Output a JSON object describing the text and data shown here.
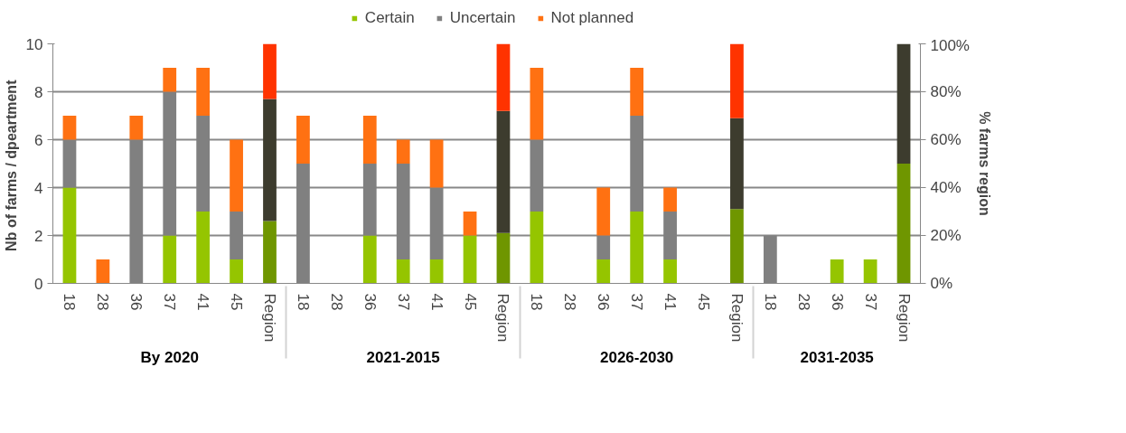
{
  "chart_data": {
    "type": "bar",
    "stacked": true,
    "categories": [
      "18",
      "28",
      "36",
      "37",
      "41",
      "45",
      "Region",
      "18",
      "28",
      "36",
      "37",
      "41",
      "45",
      "Region",
      "18",
      "28",
      "36",
      "37",
      "41",
      "45",
      "Region",
      "18",
      "28",
      "36",
      "37",
      "Region"
    ],
    "series": [
      {
        "name": "Certain",
        "color": "#95c500",
        "values": [
          4,
          0,
          0,
          2,
          3,
          1,
          null,
          0,
          0,
          2,
          1,
          1,
          2,
          null,
          3,
          0,
          1,
          3,
          1,
          0,
          null,
          0,
          0,
          1,
          1,
          null
        ]
      },
      {
        "name": "Uncertain",
        "color": "#808080",
        "values": [
          2,
          0,
          6,
          6,
          4,
          2,
          null,
          5,
          0,
          3,
          4,
          3,
          0,
          null,
          3,
          0,
          1,
          4,
          2,
          0,
          null,
          2,
          0,
          0,
          0,
          null
        ]
      },
      {
        "name": "Not planned",
        "color": "#ff7112",
        "values": [
          1,
          1,
          1,
          1,
          2,
          3,
          null,
          2,
          0,
          2,
          1,
          2,
          1,
          null,
          3,
          0,
          2,
          2,
          1,
          0,
          null,
          0,
          0,
          0,
          0,
          null
        ]
      },
      {
        "color": "#6f9600",
        "axis": "y2",
        "values": [
          null,
          null,
          null,
          null,
          null,
          null,
          26,
          null,
          null,
          null,
          null,
          null,
          null,
          21,
          null,
          null,
          null,
          null,
          null,
          null,
          31,
          null,
          null,
          null,
          null,
          50
        ]
      },
      {
        "color": "#3d3c2e",
        "axis": "y2",
        "values": [
          null,
          null,
          null,
          null,
          null,
          null,
          51,
          null,
          null,
          null,
          null,
          null,
          null,
          51,
          null,
          null,
          null,
          null,
          null,
          null,
          38,
          null,
          null,
          null,
          null,
          50
        ]
      },
      {
        "color": "#ff3300",
        "axis": "y2",
        "values": [
          null,
          null,
          null,
          null,
          null,
          null,
          23,
          null,
          null,
          null,
          null,
          null,
          null,
          28,
          null,
          null,
          null,
          null,
          null,
          null,
          31,
          null,
          null,
          null,
          null,
          0
        ]
      }
    ],
    "ylabel": "Nb  of farms / dpeartment",
    "y2label": "% farms region",
    "ylim": [
      0,
      10
    ],
    "yticks": [
      0,
      2,
      4,
      6,
      8,
      10
    ],
    "y2lim": [
      0,
      100
    ],
    "y2ticks": [
      {
        "value": 0,
        "label": "0%"
      },
      {
        "value": 20,
        "label": "20%"
      },
      {
        "value": 40,
        "label": "40%"
      },
      {
        "value": 60,
        "label": "60%"
      },
      {
        "value": 80,
        "label": "80%"
      },
      {
        "value": 100,
        "label": "100%"
      }
    ],
    "annotations": [
      "By 2020",
      "2021-2015",
      "2026-2030",
      "2031-2035"
    ],
    "grid": "y",
    "legend": "top"
  }
}
